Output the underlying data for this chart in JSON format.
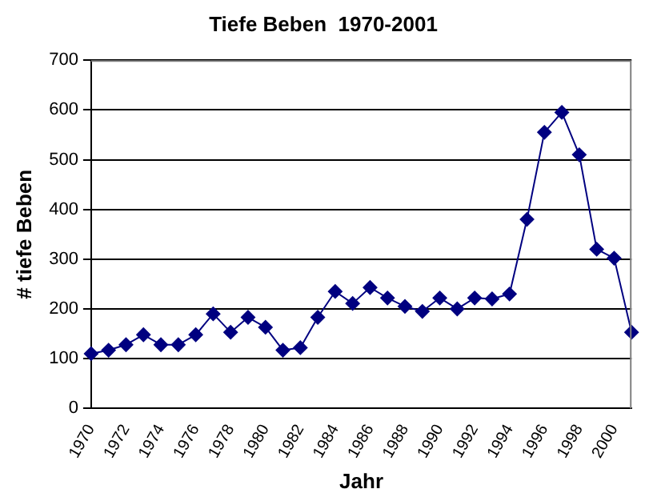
{
  "chart_data": {
    "type": "line",
    "title": "Tiefe Beben  1970-2001",
    "xlabel": "Jahr",
    "ylabel": "# tiefe Beben",
    "categories": [
      "1970",
      null,
      "1972",
      null,
      "1974",
      null,
      "1976",
      null,
      "1978",
      null,
      "1980",
      null,
      "1982",
      null,
      "1984",
      null,
      "1986",
      null,
      "1988",
      null,
      "1990",
      null,
      "1992",
      null,
      "1994",
      null,
      "1996",
      null,
      "1998",
      null,
      "2000",
      null
    ],
    "series": [
      {
        "color": "#000080",
        "values": [
          110,
          117,
          128,
          148,
          128,
          128,
          148,
          190,
          153,
          183,
          163,
          117,
          122,
          183,
          235,
          211,
          243,
          222,
          205,
          195,
          222,
          200,
          222,
          220,
          230,
          380,
          555,
          595,
          510,
          320,
          302,
          153
        ]
      }
    ],
    "ylim": [
      0,
      700
    ],
    "yticks": [
      0,
      100,
      200,
      300,
      400,
      500,
      600,
      700
    ],
    "grid": "y",
    "legend": false,
    "marker": "diamond",
    "line_style": "solid"
  }
}
